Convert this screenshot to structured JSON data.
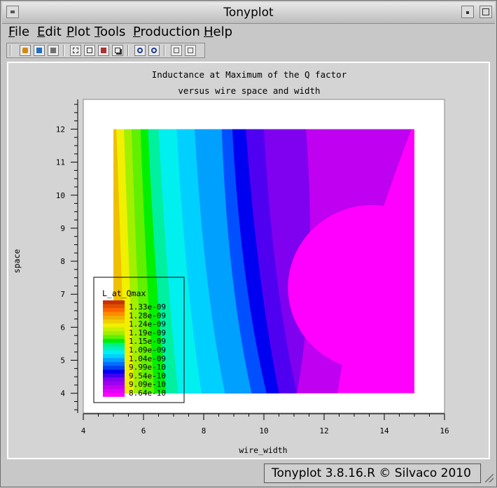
{
  "window": {
    "title": "Tonyplot"
  },
  "menubar": {
    "items": [
      {
        "id": "file",
        "label": "File",
        "mnemonic": "F",
        "rest": "ile"
      },
      {
        "id": "edit",
        "label": "Edit",
        "mnemonic": "E",
        "rest": "dit"
      },
      {
        "id": "plot",
        "label": "Plot",
        "mnemonic": "P",
        "rest": "lot"
      },
      {
        "id": "tools",
        "label": "Tools",
        "mnemonic": "T",
        "rest": "ools"
      },
      {
        "id": "production",
        "label": "Production",
        "mnemonic": "P",
        "rest": "roduction"
      },
      {
        "id": "help",
        "label": "Help",
        "mnemonic": "H",
        "rest": "elp"
      }
    ]
  },
  "toolbar": {
    "icons": [
      "load-icon",
      "save-icon",
      "print-icon",
      "select-icon",
      "copy-icon",
      "paste-icon",
      "stack-icon",
      "zoom-in-icon",
      "zoom-out-icon",
      "back-icon",
      "forward-icon"
    ]
  },
  "status": {
    "text": "Tonyplot 3.8.16.R © Silvaco 2010"
  },
  "chart_data": {
    "type": "heatmap",
    "title": "Inductance at Maximum of the Q factor",
    "subtitle": "versus wire space and width",
    "xlabel": "wire_width",
    "ylabel": "space",
    "xlim": [
      4,
      16
    ],
    "ylim": [
      3.4,
      12.9
    ],
    "x_ticks": [
      4,
      6,
      8,
      10,
      12,
      14,
      16
    ],
    "y_ticks": [
      4,
      5,
      6,
      7,
      8,
      9,
      10,
      11,
      12
    ],
    "data_extent": {
      "x": [
        5,
        15
      ],
      "y": [
        4,
        12
      ]
    },
    "grid": false,
    "legend": {
      "title": "L_at_Qmax",
      "placement": "bottom-left",
      "labels": [
        "1.33e-09",
        "1.28e-09",
        "1.24e-09",
        "1.19e-09",
        "1.15e-09",
        "1.09e-09",
        "1.04e-09",
        "9.99e-10",
        "9.54e-10",
        "9.09e-10",
        "8.64e-10"
      ]
    },
    "colors": {
      "high": "#c83200",
      "orange": "#ff8c00",
      "yellow": "#f0f000",
      "yellowgreen": "#a0f000",
      "green": "#00f000",
      "cyan": "#00f0f0",
      "skyblue": "#00a0ff",
      "blue": "#0000f0",
      "violet": "#8000f0",
      "purple": "#c000f0",
      "magenta": "#ff00ff"
    }
  }
}
